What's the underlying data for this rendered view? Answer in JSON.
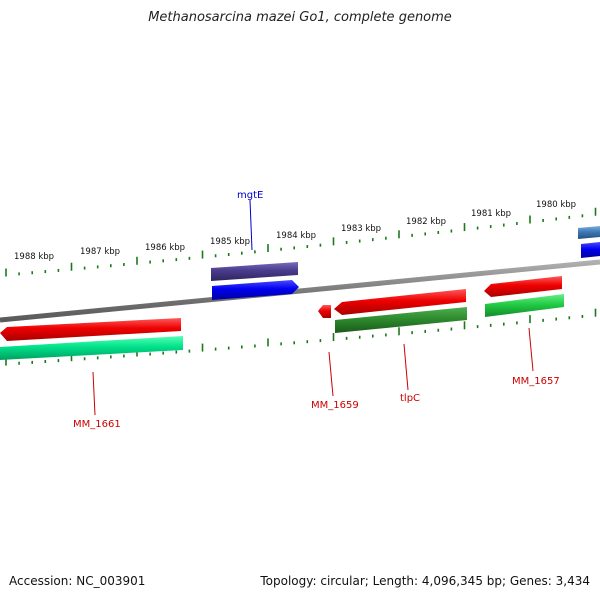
{
  "title": "Methanosarcina mazei Go1, complete genome",
  "footer": {
    "accession": "Accession: NC_003901",
    "summary": "Topology: circular; Length: 4,096,345 bp; Genes: 3,434"
  },
  "scale_labels": [
    "1988 kbp",
    "1987 kbp",
    "1986 kbp",
    "1985 kbp",
    "1984 kbp",
    "1983 kbp",
    "1982 kbp",
    "1981 kbp",
    "1980 kbp"
  ],
  "gene_labels": {
    "mgtE": "mgtE",
    "mm1661": "MM_1661",
    "mm1659": "MM_1659",
    "tlpC": "tlpC",
    "mm1657": "MM_1657"
  },
  "colors": {
    "backbone": "#8a8a8a",
    "tick": "#1a7a1a",
    "cds_forward": "#0000ee",
    "cds_reverse": "#ee0000",
    "gene_reverse": "#22cc55",
    "gene_dark_green": "#2e8b2e",
    "gene_teal": "#00e28a",
    "gene_purple": "#4a3c8c",
    "gene_steelblue": "#3d7ab5",
    "label_forward": "#0000cc",
    "label_reverse": "#cc0000"
  }
}
